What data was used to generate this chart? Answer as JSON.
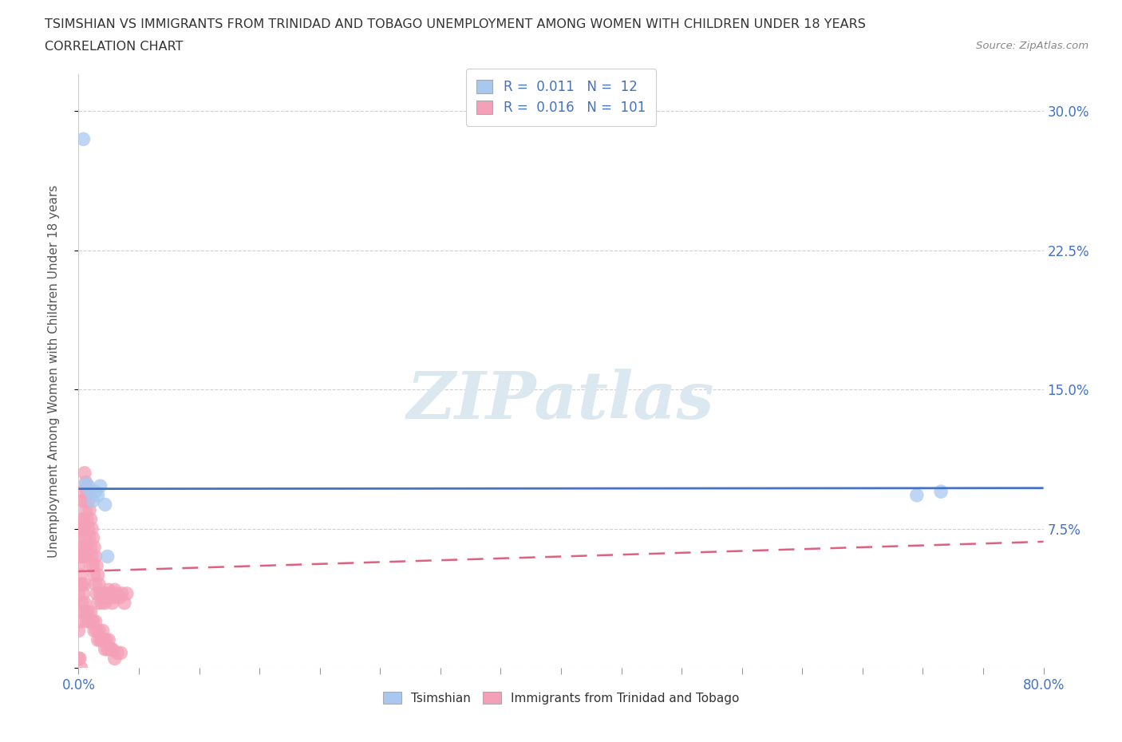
{
  "title_line1": "TSIMSHIAN VS IMMIGRANTS FROM TRINIDAD AND TOBAGO UNEMPLOYMENT AMONG WOMEN WITH CHILDREN UNDER 18 YEARS",
  "title_line2": "CORRELATION CHART",
  "source": "Source: ZipAtlas.com",
  "ylabel": "Unemployment Among Women with Children Under 18 years",
  "xlim": [
    0.0,
    0.8
  ],
  "ylim": [
    0.0,
    0.32
  ],
  "yticks": [
    0.0,
    0.075,
    0.15,
    0.225,
    0.3
  ],
  "yticklabels": [
    "",
    "7.5%",
    "15.0%",
    "22.5%",
    "30.0%"
  ],
  "grid_color": "#d0d0d0",
  "background_color": "#ffffff",
  "watermark": "ZIPatlas",
  "legend_R1": "0.011",
  "legend_N1": "12",
  "legend_R2": "0.016",
  "legend_N2": "101",
  "color_tsimshian": "#a8c8f0",
  "color_trinidad": "#f4a0b8",
  "line_color_tsimshian": "#4472c4",
  "line_color_trinidad": "#e06080",
  "tsimshian_x": [
    0.004,
    0.006,
    0.008,
    0.01,
    0.012,
    0.014,
    0.016,
    0.018,
    0.022,
    0.024,
    0.695,
    0.715
  ],
  "tsimshian_y": [
    0.285,
    0.099,
    0.098,
    0.095,
    0.09,
    0.095,
    0.093,
    0.098,
    0.088,
    0.06,
    0.093,
    0.095
  ],
  "trinidad_x": [
    0.0,
    0.0,
    0.0,
    0.001,
    0.001,
    0.001,
    0.002,
    0.002,
    0.002,
    0.003,
    0.003,
    0.003,
    0.003,
    0.004,
    0.004,
    0.004,
    0.005,
    0.005,
    0.005,
    0.005,
    0.006,
    0.006,
    0.006,
    0.007,
    0.007,
    0.007,
    0.008,
    0.008,
    0.008,
    0.009,
    0.009,
    0.01,
    0.01,
    0.01,
    0.011,
    0.011,
    0.012,
    0.012,
    0.013,
    0.013,
    0.014,
    0.014,
    0.015,
    0.015,
    0.016,
    0.016,
    0.017,
    0.018,
    0.019,
    0.02,
    0.021,
    0.022,
    0.023,
    0.024,
    0.025,
    0.026,
    0.027,
    0.028,
    0.029,
    0.03,
    0.032,
    0.034,
    0.036,
    0.038,
    0.04,
    0.0,
    0.001,
    0.002,
    0.003,
    0.004,
    0.005,
    0.005,
    0.006,
    0.007,
    0.008,
    0.009,
    0.01,
    0.011,
    0.012,
    0.013,
    0.014,
    0.015,
    0.016,
    0.017,
    0.018,
    0.019,
    0.02,
    0.021,
    0.022,
    0.023,
    0.024,
    0.025,
    0.026,
    0.027,
    0.028,
    0.03,
    0.032,
    0.035,
    0.0,
    0.001,
    0.002
  ],
  "trinidad_y": [
    0.07,
    0.055,
    0.04,
    0.075,
    0.06,
    0.045,
    0.08,
    0.065,
    0.05,
    0.09,
    0.075,
    0.06,
    0.045,
    0.095,
    0.08,
    0.065,
    0.105,
    0.09,
    0.075,
    0.06,
    0.1,
    0.085,
    0.07,
    0.095,
    0.08,
    0.065,
    0.09,
    0.075,
    0.06,
    0.085,
    0.07,
    0.08,
    0.065,
    0.055,
    0.075,
    0.06,
    0.07,
    0.055,
    0.065,
    0.05,
    0.06,
    0.045,
    0.055,
    0.04,
    0.05,
    0.035,
    0.045,
    0.04,
    0.035,
    0.04,
    0.038,
    0.035,
    0.04,
    0.038,
    0.042,
    0.038,
    0.04,
    0.035,
    0.038,
    0.042,
    0.04,
    0.038,
    0.04,
    0.035,
    0.04,
    0.02,
    0.025,
    0.03,
    0.035,
    0.04,
    0.035,
    0.045,
    0.03,
    0.025,
    0.03,
    0.025,
    0.03,
    0.025,
    0.025,
    0.02,
    0.025,
    0.02,
    0.015,
    0.02,
    0.015,
    0.015,
    0.02,
    0.015,
    0.01,
    0.015,
    0.01,
    0.015,
    0.01,
    0.01,
    0.01,
    0.005,
    0.008,
    0.008,
    0.005,
    0.005,
    0.0
  ],
  "tsim_line_slope": 0.0005,
  "tsim_line_intercept": 0.0965,
  "trin_line_slope": 0.02,
  "trin_line_intercept": 0.052
}
